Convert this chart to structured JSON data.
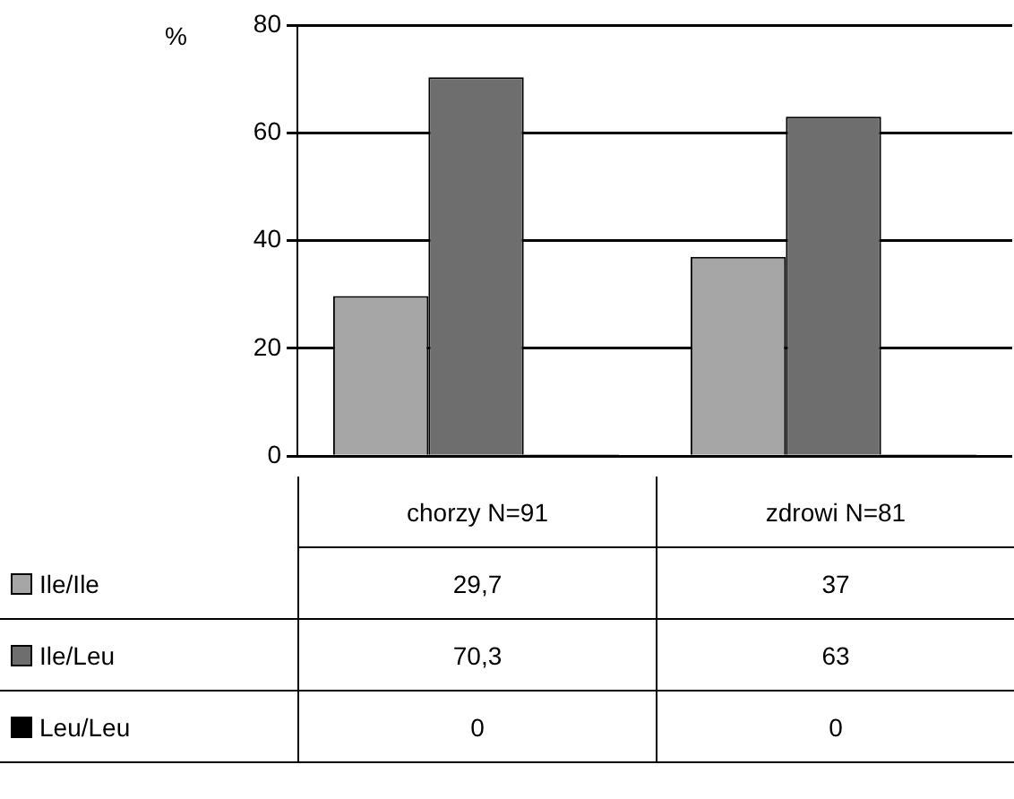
{
  "chart_data": {
    "type": "bar",
    "ylabel": "%",
    "categories": [
      "chorzy N=91",
      "zdrowi N=81"
    ],
    "series": [
      {
        "name": "Ile/Ile",
        "color": "#a6a6a6",
        "values": [
          29.7,
          37
        ],
        "value_labels": [
          "29,7",
          "37"
        ]
      },
      {
        "name": "Ile/Leu",
        "color": "#6e6e6e",
        "values": [
          70.3,
          63
        ],
        "value_labels": [
          "70,3",
          "63"
        ]
      },
      {
        "name": "Leu/Leu",
        "color": "#000000",
        "values": [
          0,
          0
        ],
        "value_labels": [
          "0",
          "0"
        ]
      }
    ],
    "ylim": [
      0,
      80
    ],
    "yticks": [
      0,
      20,
      40,
      60,
      80
    ],
    "grid": "y",
    "legend": "bottom"
  }
}
